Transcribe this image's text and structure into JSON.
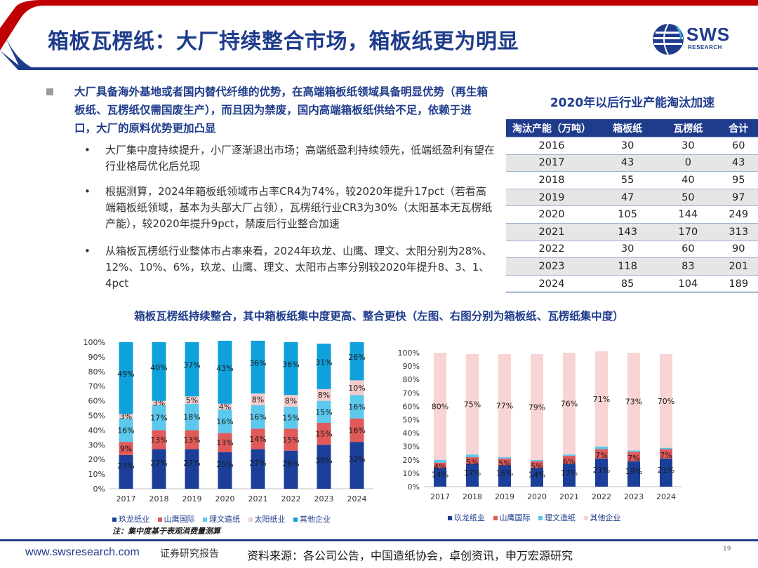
{
  "header": {
    "title": "箱板瓦楞纸：大厂持续整合市场，箱板纸更为明显",
    "logo_text": "SWS",
    "logo_sub": "RESEARCH"
  },
  "colors": {
    "accent": "#1f3c8c",
    "red": "#c00000",
    "jiulong": "#1b3f99",
    "shanying": "#e05a5a",
    "liwen": "#5bc8ec",
    "taiyang": "#f4cccc",
    "others": "#0ea1db",
    "others_right": "#f8d4d4"
  },
  "main_bullet": "大厂具备海外基地或者国内替代纤维的优势，在高端箱板纸领域具备明显优势（再生箱板纸、瓦楞纸仅需国废生产），而且因为禁废，国内高端箱板纸供给不足，依赖于进口，大厂的原料优势更加凸显",
  "sub_bullets": [
    "大厂集中度持续提升，小厂逐渐退出市场；高端纸盈利持续领先，低端纸盈利有望在行业格局优化后兑现",
    "根据测算，2024年箱板纸领域市占率CR4为74%，较2020年提升17pct（若看高端箱板纸领域，基本为头部大厂占领），瓦楞纸行业CR3为30%（太阳基本无瓦楞纸产能），较2020年提升9pct，禁废后行业整合加速",
    "从箱板瓦楞纸行业整体市占率来看，2024年玖龙、山鹰、理文、太阳分别为28%、12%、10%、6%，玖龙、山鹰、理文、太阳市占率分别较2020年提升8、3、1、4pct"
  ],
  "bullet_dot": "•",
  "table": {
    "title": "2020年以后行业产能淘汰加速",
    "headers": [
      "淘汰产能（万吨）",
      "箱板纸",
      "瓦楞纸",
      "合计"
    ],
    "rows": [
      [
        "2016",
        "30",
        "30",
        "60"
      ],
      [
        "2017",
        "43",
        "0",
        "43"
      ],
      [
        "2018",
        "55",
        "40",
        "95"
      ],
      [
        "2019",
        "47",
        "50",
        "97"
      ],
      [
        "2020",
        "105",
        "144",
        "249"
      ],
      [
        "2021",
        "143",
        "170",
        "313"
      ],
      [
        "2022",
        "30",
        "60",
        "90"
      ],
      [
        "2023",
        "118",
        "83",
        "201"
      ],
      [
        "2024",
        "85",
        "104",
        "189"
      ]
    ]
  },
  "section_title": "箱板瓦楞纸持续整合，其中箱板纸集中度更高、整合更快（左图、右图分别为箱板纸、瓦楞纸集中度）",
  "chart_data": [
    {
      "type": "bar",
      "stacked": true,
      "title": "箱板纸集中度",
      "categories": [
        "2017",
        "2018",
        "2019",
        "2020",
        "2021",
        "2022",
        "2023",
        "2024"
      ],
      "yticks": [
        "0%",
        "10%",
        "20%",
        "30%",
        "40%",
        "50%",
        "60%",
        "70%",
        "80%",
        "90%",
        "100%"
      ],
      "ylim": [
        0,
        100
      ],
      "series": [
        {
          "name": "玖龙纸业",
          "values": [
            23,
            27,
            27,
            25,
            27,
            26,
            30,
            32
          ]
        },
        {
          "name": "山鹰国际",
          "values": [
            9,
            13,
            13,
            13,
            14,
            15,
            15,
            16
          ]
        },
        {
          "name": "理文造纸",
          "values": [
            16,
            17,
            18,
            16,
            16,
            15,
            15,
            16
          ]
        },
        {
          "name": "太阳纸业",
          "values": [
            3,
            3,
            5,
            4,
            8,
            8,
            8,
            10
          ]
        },
        {
          "name": "其他企业",
          "values": [
            49,
            40,
            37,
            43,
            36,
            36,
            31,
            26
          ]
        }
      ],
      "legend_position": "bottom"
    },
    {
      "type": "bar",
      "stacked": true,
      "title": "瓦楞纸集中度",
      "categories": [
        "2017",
        "2018",
        "2019",
        "2020",
        "2021",
        "2022",
        "2023",
        "2024"
      ],
      "yticks": [
        "0%",
        "10%",
        "20%",
        "30%",
        "40%",
        "50%",
        "60%",
        "70%",
        "80%",
        "90%",
        "100%"
      ],
      "ylim": [
        0,
        100
      ],
      "series": [
        {
          "name": "玖龙纸业",
          "values": [
            14,
            17,
            16,
            14,
            17,
            21,
            19,
            21
          ]
        },
        {
          "name": "山鹰国际",
          "values": [
            4,
            5,
            5,
            5,
            6,
            7,
            7,
            7
          ]
        },
        {
          "name": "理文造纸",
          "values": [
            2,
            2,
            1,
            1,
            1,
            2,
            1,
            1
          ]
        },
        {
          "name": "其他企业",
          "values": [
            80,
            75,
            77,
            79,
            76,
            71,
            73,
            70
          ]
        }
      ],
      "legend_position": "bottom"
    }
  ],
  "legend_left": [
    "玖龙纸业",
    "山鹰国际",
    "理文造纸",
    "太阳纸业",
    "其他企业"
  ],
  "legend_right": [
    "玖龙纸业",
    "山鹰国际",
    "理文造纸",
    "其他企业"
  ],
  "note": "注：集中度基于表观消费量测算",
  "footer": {
    "url": "www.swsresearch.com",
    "tag": "证券研究报告",
    "source": "资料来源：各公司公告，中国造纸协会，卓创资讯，申万宏源研究",
    "page": "19"
  }
}
